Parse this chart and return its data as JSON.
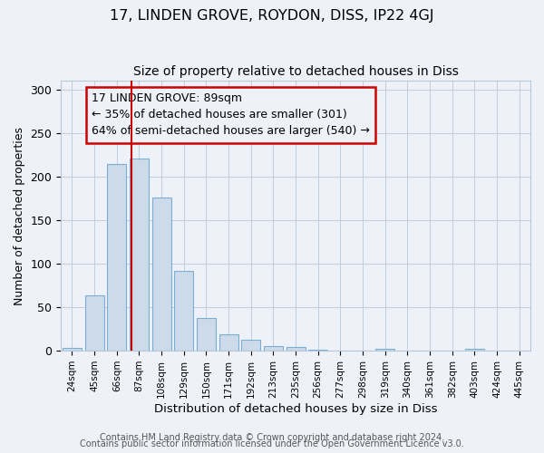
{
  "title": "17, LINDEN GROVE, ROYDON, DISS, IP22 4GJ",
  "subtitle": "Size of property relative to detached houses in Diss",
  "xlabel": "Distribution of detached houses by size in Diss",
  "ylabel": "Number of detached properties",
  "bar_labels": [
    "24sqm",
    "45sqm",
    "66sqm",
    "87sqm",
    "108sqm",
    "129sqm",
    "150sqm",
    "171sqm",
    "192sqm",
    "213sqm",
    "235sqm",
    "256sqm",
    "277sqm",
    "298sqm",
    "319sqm",
    "340sqm",
    "361sqm",
    "382sqm",
    "403sqm",
    "424sqm",
    "445sqm"
  ],
  "bar_values": [
    3,
    64,
    214,
    221,
    176,
    92,
    38,
    19,
    13,
    5,
    4,
    1,
    0,
    0,
    2,
    0,
    0,
    0,
    2,
    0,
    0
  ],
  "bar_color": "#ccdaea",
  "bar_edgecolor": "#7aafd4",
  "bar_width": 0.85,
  "vline_color": "#cc0000",
  "annotation_line1": "17 LINDEN GROVE: 89sqm",
  "annotation_line2": "← 35% of detached houses are smaller (301)",
  "annotation_line3": "64% of semi-detached houses are larger (540) →",
  "annotation_box_edgecolor": "#cc0000",
  "annotation_fontsize": 9,
  "ylim": [
    0,
    310
  ],
  "yticks": [
    0,
    50,
    100,
    150,
    200,
    250,
    300
  ],
  "title_fontsize": 11.5,
  "subtitle_fontsize": 10,
  "footer_line1": "Contains HM Land Registry data © Crown copyright and database right 2024.",
  "footer_line2": "Contains public sector information licensed under the Open Government Licence v3.0.",
  "footer_fontsize": 7,
  "bg_color": "#eef2f8",
  "axes_bg_color": "#eef2f8",
  "grid_color": "#b8c8d8"
}
